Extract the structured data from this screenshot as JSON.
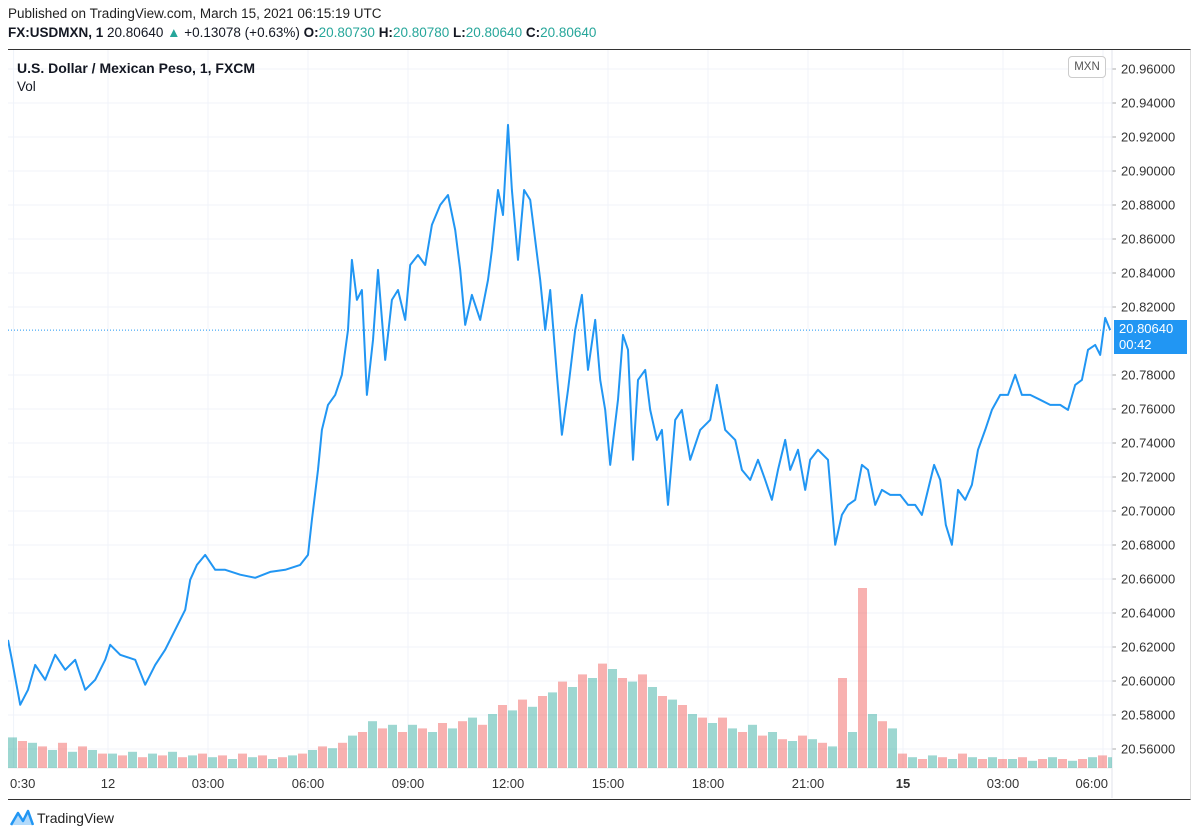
{
  "header": {
    "published": "Published on TradingView.com, March 15, 2021 06:15:19 UTC",
    "symbol": "FX:USDMXN, 1",
    "last": "20.80640",
    "change": "+0.13078 (+0.63%)",
    "change_icon": "triangle-up-icon",
    "o_label": "O:",
    "o": "20.80730",
    "h_label": "H:",
    "h": "20.80780",
    "l_label": "L:",
    "l": "20.80640",
    "c_label": "C:",
    "c": "20.80640"
  },
  "legend": {
    "title": "U.S. Dollar / Mexican Peso, 1, FXCM",
    "vol": "Vol"
  },
  "price_axis": {
    "currency": "MXN",
    "last_price": "20.80640",
    "countdown": "00:42"
  },
  "footer": {
    "brand": "TradingView",
    "logo_icon": "tradingview-logo-icon"
  },
  "colors": {
    "line": "#2196f3",
    "up": "#26a69a",
    "down": "#ef5350",
    "last_label_bg": "#2196f3"
  },
  "chart_data": {
    "type": "line",
    "grid": true,
    "y_ticks": [
      "20.96000",
      "20.94000",
      "20.92000",
      "20.90000",
      "20.88000",
      "20.86000",
      "20.84000",
      "20.82000",
      "20.78000",
      "20.76000",
      "20.74000",
      "20.72000",
      "20.70000",
      "20.68000",
      "20.66000",
      "20.64000",
      "20.62000",
      "20.60000",
      "20.58000",
      "20.56000"
    ],
    "ylim": [
      20.55,
      20.97
    ],
    "x_ticks": [
      {
        "label": "0:30",
        "t": "2021-03-11 21:10",
        "bold": false
      },
      {
        "label": "12",
        "t": "2021-03-12 00:00",
        "bold": false
      },
      {
        "label": "03:00",
        "t": "2021-03-12 03:00",
        "bold": false
      },
      {
        "label": "06:00",
        "t": "2021-03-12 06:00",
        "bold": false
      },
      {
        "label": "09:00",
        "t": "2021-03-12 09:00",
        "bold": false
      },
      {
        "label": "12:00",
        "t": "2021-03-12 12:00",
        "bold": false
      },
      {
        "label": "15:00",
        "t": "2021-03-12 15:00",
        "bold": false
      },
      {
        "label": "18:00",
        "t": "2021-03-12 18:00",
        "bold": false
      },
      {
        "label": "21:00",
        "t": "2021-03-12 21:00",
        "bold": false
      },
      {
        "label": "15",
        "t": "2021-03-15 00:00",
        "bold": true
      },
      {
        "label": "03:00",
        "t": "2021-03-15 03:00",
        "bold": false
      },
      {
        "label": "06:00",
        "t": "2021-03-15 06:00",
        "bold": false
      }
    ],
    "series": [
      {
        "points": [
          [
            "2021-03-11 21:00",
            20.6242
          ],
          [
            "2021-03-11 21:07",
            20.6125
          ],
          [
            "2021-03-11 21:22",
            20.586
          ],
          [
            "2021-03-11 21:36",
            20.5948
          ],
          [
            "2021-03-11 21:49",
            20.6095
          ],
          [
            "2021-03-11 22:07",
            20.6007
          ],
          [
            "2021-03-11 22:25",
            20.6154
          ],
          [
            "2021-03-11 22:43",
            20.6066
          ],
          [
            "2021-03-11 23:01",
            20.6125
          ],
          [
            "2021-03-11 23:19",
            20.5948
          ],
          [
            "2021-03-11 23:37",
            20.6007
          ],
          [
            "2021-03-11 23:55",
            20.6125
          ],
          [
            "2021-03-12 00:04",
            20.6213
          ],
          [
            "2021-03-12 00:22",
            20.6154
          ],
          [
            "2021-03-12 00:49",
            20.6125
          ],
          [
            "2021-03-12 01:07",
            20.5978
          ],
          [
            "2021-03-12 01:25",
            20.6095
          ],
          [
            "2021-03-12 01:43",
            20.6184
          ],
          [
            "2021-03-12 02:01",
            20.6301
          ],
          [
            "2021-03-12 02:19",
            20.6419
          ],
          [
            "2021-03-12 02:28",
            20.6595
          ],
          [
            "2021-03-12 02:40",
            20.6683
          ],
          [
            "2021-03-12 02:55",
            20.6742
          ],
          [
            "2021-03-12 03:13",
            20.6654
          ],
          [
            "2021-03-12 03:31",
            20.6654
          ],
          [
            "2021-03-12 03:58",
            20.6625
          ],
          [
            "2021-03-12 04:25",
            20.6607
          ],
          [
            "2021-03-12 04:52",
            20.6642
          ],
          [
            "2021-03-12 05:19",
            20.6654
          ],
          [
            "2021-03-12 05:46",
            20.6683
          ],
          [
            "2021-03-12 06:00",
            20.6742
          ],
          [
            "2021-03-12 06:07",
            20.6948
          ],
          [
            "2021-03-12 06:18",
            20.7242
          ],
          [
            "2021-03-12 06:25",
            20.7477
          ],
          [
            "2021-03-12 06:36",
            20.7624
          ],
          [
            "2021-03-12 06:49",
            20.7683
          ],
          [
            "2021-03-12 07:01",
            20.7801
          ],
          [
            "2021-03-12 07:12",
            20.8065
          ],
          [
            "2021-03-12 07:19",
            20.8477
          ],
          [
            "2021-03-12 07:28",
            20.8242
          ],
          [
            "2021-03-12 07:37",
            20.83
          ],
          [
            "2021-03-12 07:46",
            20.7683
          ],
          [
            "2021-03-12 07:57",
            20.8006
          ],
          [
            "2021-03-12 08:06",
            20.8418
          ],
          [
            "2021-03-12 08:19",
            20.7889
          ],
          [
            "2021-03-12 08:31",
            20.8242
          ],
          [
            "2021-03-12 08:42",
            20.83
          ],
          [
            "2021-03-12 08:55",
            20.8124
          ],
          [
            "2021-03-12 09:04",
            20.8447
          ],
          [
            "2021-03-12 09:18",
            20.8506
          ],
          [
            "2021-03-12 09:31",
            20.8447
          ],
          [
            "2021-03-12 09:43",
            20.8683
          ],
          [
            "2021-03-12 09:58",
            20.88
          ],
          [
            "2021-03-12 10:12",
            20.8859
          ],
          [
            "2021-03-12 10:25",
            20.8653
          ],
          [
            "2021-03-12 10:34",
            20.8418
          ],
          [
            "2021-03-12 10:43",
            20.8095
          ],
          [
            "2021-03-12 10:55",
            20.8271
          ],
          [
            "2021-03-12 11:10",
            20.8124
          ],
          [
            "2021-03-12 11:24",
            20.8359
          ],
          [
            "2021-03-12 11:31",
            20.8536
          ],
          [
            "2021-03-12 11:42",
            20.8888
          ],
          [
            "2021-03-12 11:51",
            20.8741
          ],
          [
            "2021-03-12 12:00",
            20.9271
          ],
          [
            "2021-03-12 12:07",
            20.8888
          ],
          [
            "2021-03-12 12:18",
            20.8477
          ],
          [
            "2021-03-12 12:29",
            20.8888
          ],
          [
            "2021-03-12 12:40",
            20.883
          ],
          [
            "2021-03-12 12:49",
            20.8594
          ],
          [
            "2021-03-12 12:58",
            20.8359
          ],
          [
            "2021-03-12 13:07",
            20.8065
          ],
          [
            "2021-03-12 13:16",
            20.83
          ],
          [
            "2021-03-12 13:28",
            20.7801
          ],
          [
            "2021-03-12 13:37",
            20.7448
          ],
          [
            "2021-03-12 13:48",
            20.7712
          ],
          [
            "2021-03-12 14:01",
            20.8065
          ],
          [
            "2021-03-12 14:13",
            20.8271
          ],
          [
            "2021-03-12 14:24",
            20.783
          ],
          [
            "2021-03-12 14:37",
            20.8124
          ],
          [
            "2021-03-12 14:46",
            20.7771
          ],
          [
            "2021-03-12 14:55",
            20.7595
          ],
          [
            "2021-03-12 15:04",
            20.7271
          ],
          [
            "2021-03-12 15:18",
            20.7654
          ],
          [
            "2021-03-12 15:27",
            20.8036
          ],
          [
            "2021-03-12 15:36",
            20.7948
          ],
          [
            "2021-03-12 15:45",
            20.7301
          ],
          [
            "2021-03-12 15:54",
            20.7771
          ],
          [
            "2021-03-12 16:07",
            20.783
          ],
          [
            "2021-03-12 16:16",
            20.7595
          ],
          [
            "2021-03-12 16:28",
            20.7418
          ],
          [
            "2021-03-12 16:37",
            20.7477
          ],
          [
            "2021-03-12 16:48",
            20.7036
          ],
          [
            "2021-03-12 17:01",
            20.7536
          ],
          [
            "2021-03-12 17:13",
            20.7595
          ],
          [
            "2021-03-12 17:28",
            20.7301
          ],
          [
            "2021-03-12 17:46",
            20.7477
          ],
          [
            "2021-03-12 18:04",
            20.7536
          ],
          [
            "2021-03-12 18:16",
            20.7742
          ],
          [
            "2021-03-12 18:31",
            20.7477
          ],
          [
            "2021-03-12 18:49",
            20.7418
          ],
          [
            "2021-03-12 19:01",
            20.7242
          ],
          [
            "2021-03-12 19:16",
            20.7183
          ],
          [
            "2021-03-12 19:30",
            20.7301
          ],
          [
            "2021-03-12 19:43",
            20.7183
          ],
          [
            "2021-03-12 19:55",
            20.7066
          ],
          [
            "2021-03-12 20:06",
            20.7242
          ],
          [
            "2021-03-12 20:19",
            20.7418
          ],
          [
            "2021-03-12 20:28",
            20.7242
          ],
          [
            "2021-03-12 20:42",
            20.736
          ],
          [
            "2021-03-12 20:55",
            20.7124
          ],
          [
            "2021-03-12 21:04",
            20.7301
          ],
          [
            "2021-03-12 21:18",
            20.736
          ],
          [
            "2021-03-12 21:36",
            20.7301
          ],
          [
            "2021-03-14 21:58",
            20.6801
          ],
          [
            "2021-03-14 22:10",
            20.6977
          ],
          [
            "2021-03-14 22:21",
            20.7036
          ],
          [
            "2021-03-14 22:34",
            20.7066
          ],
          [
            "2021-03-14 22:46",
            20.7271
          ],
          [
            "2021-03-14 22:57",
            20.7242
          ],
          [
            "2021-03-14 23:10",
            20.7036
          ],
          [
            "2021-03-14 23:22",
            20.7124
          ],
          [
            "2021-03-14 23:37",
            20.7095
          ],
          [
            "2021-03-14 23:55",
            20.7095
          ],
          [
            "2021-03-15 00:09",
            20.7036
          ],
          [
            "2021-03-15 00:22",
            20.7036
          ],
          [
            "2021-03-15 00:34",
            20.6977
          ],
          [
            "2021-03-15 00:45",
            20.7124
          ],
          [
            "2021-03-15 00:56",
            20.7271
          ],
          [
            "2021-03-15 01:07",
            20.7183
          ],
          [
            "2021-03-15 01:17",
            20.6919
          ],
          [
            "2021-03-15 01:28",
            20.6801
          ],
          [
            "2021-03-15 01:39",
            20.7124
          ],
          [
            "2021-03-15 01:52",
            20.7066
          ],
          [
            "2021-03-15 02:04",
            20.7154
          ],
          [
            "2021-03-15 02:15",
            20.736
          ],
          [
            "2021-03-15 02:28",
            20.7477
          ],
          [
            "2021-03-15 02:40",
            20.7595
          ],
          [
            "2021-03-15 02:55",
            20.7683
          ],
          [
            "2021-03-15 03:09",
            20.7683
          ],
          [
            "2021-03-15 03:22",
            20.7801
          ],
          [
            "2021-03-15 03:34",
            20.7683
          ],
          [
            "2021-03-15 03:49",
            20.7683
          ],
          [
            "2021-03-15 04:07",
            20.7654
          ],
          [
            "2021-03-15 04:25",
            20.7624
          ],
          [
            "2021-03-15 04:43",
            20.7624
          ],
          [
            "2021-03-15 04:57",
            20.7595
          ],
          [
            "2021-03-15 05:10",
            20.7742
          ],
          [
            "2021-03-15 05:22",
            20.7771
          ],
          [
            "2021-03-15 05:33",
            20.7948
          ],
          [
            "2021-03-15 05:46",
            20.7977
          ],
          [
            "2021-03-15 05:55",
            20.7918
          ],
          [
            "2021-03-15 06:04",
            20.8136
          ],
          [
            "2021-03-15 06:13",
            20.8064
          ]
        ]
      }
    ],
    "last_value": 20.8064,
    "volume_relative": [
      17,
      15,
      14,
      12,
      10,
      14,
      9,
      12,
      10,
      8,
      8,
      7,
      9,
      6,
      8,
      7,
      9,
      6,
      7,
      8,
      6,
      7,
      5,
      8,
      6,
      7,
      5,
      6,
      7,
      8,
      10,
      12,
      11,
      14,
      18,
      20,
      26,
      22,
      24,
      20,
      24,
      22,
      20,
      25,
      22,
      26,
      28,
      24,
      30,
      35,
      32,
      38,
      34,
      40,
      42,
      48,
      45,
      52,
      50,
      58,
      55,
      50,
      48,
      52,
      45,
      40,
      38,
      35,
      30,
      28,
      25,
      28,
      22,
      20,
      24,
      18,
      20,
      16,
      15,
      18,
      16,
      14,
      12,
      50,
      20,
      100,
      30,
      26,
      22,
      8,
      6,
      5,
      7,
      6,
      5,
      8,
      6,
      5,
      6,
      5,
      5,
      6,
      4,
      5,
      6,
      5,
      4,
      5,
      6,
      7,
      6
    ]
  }
}
